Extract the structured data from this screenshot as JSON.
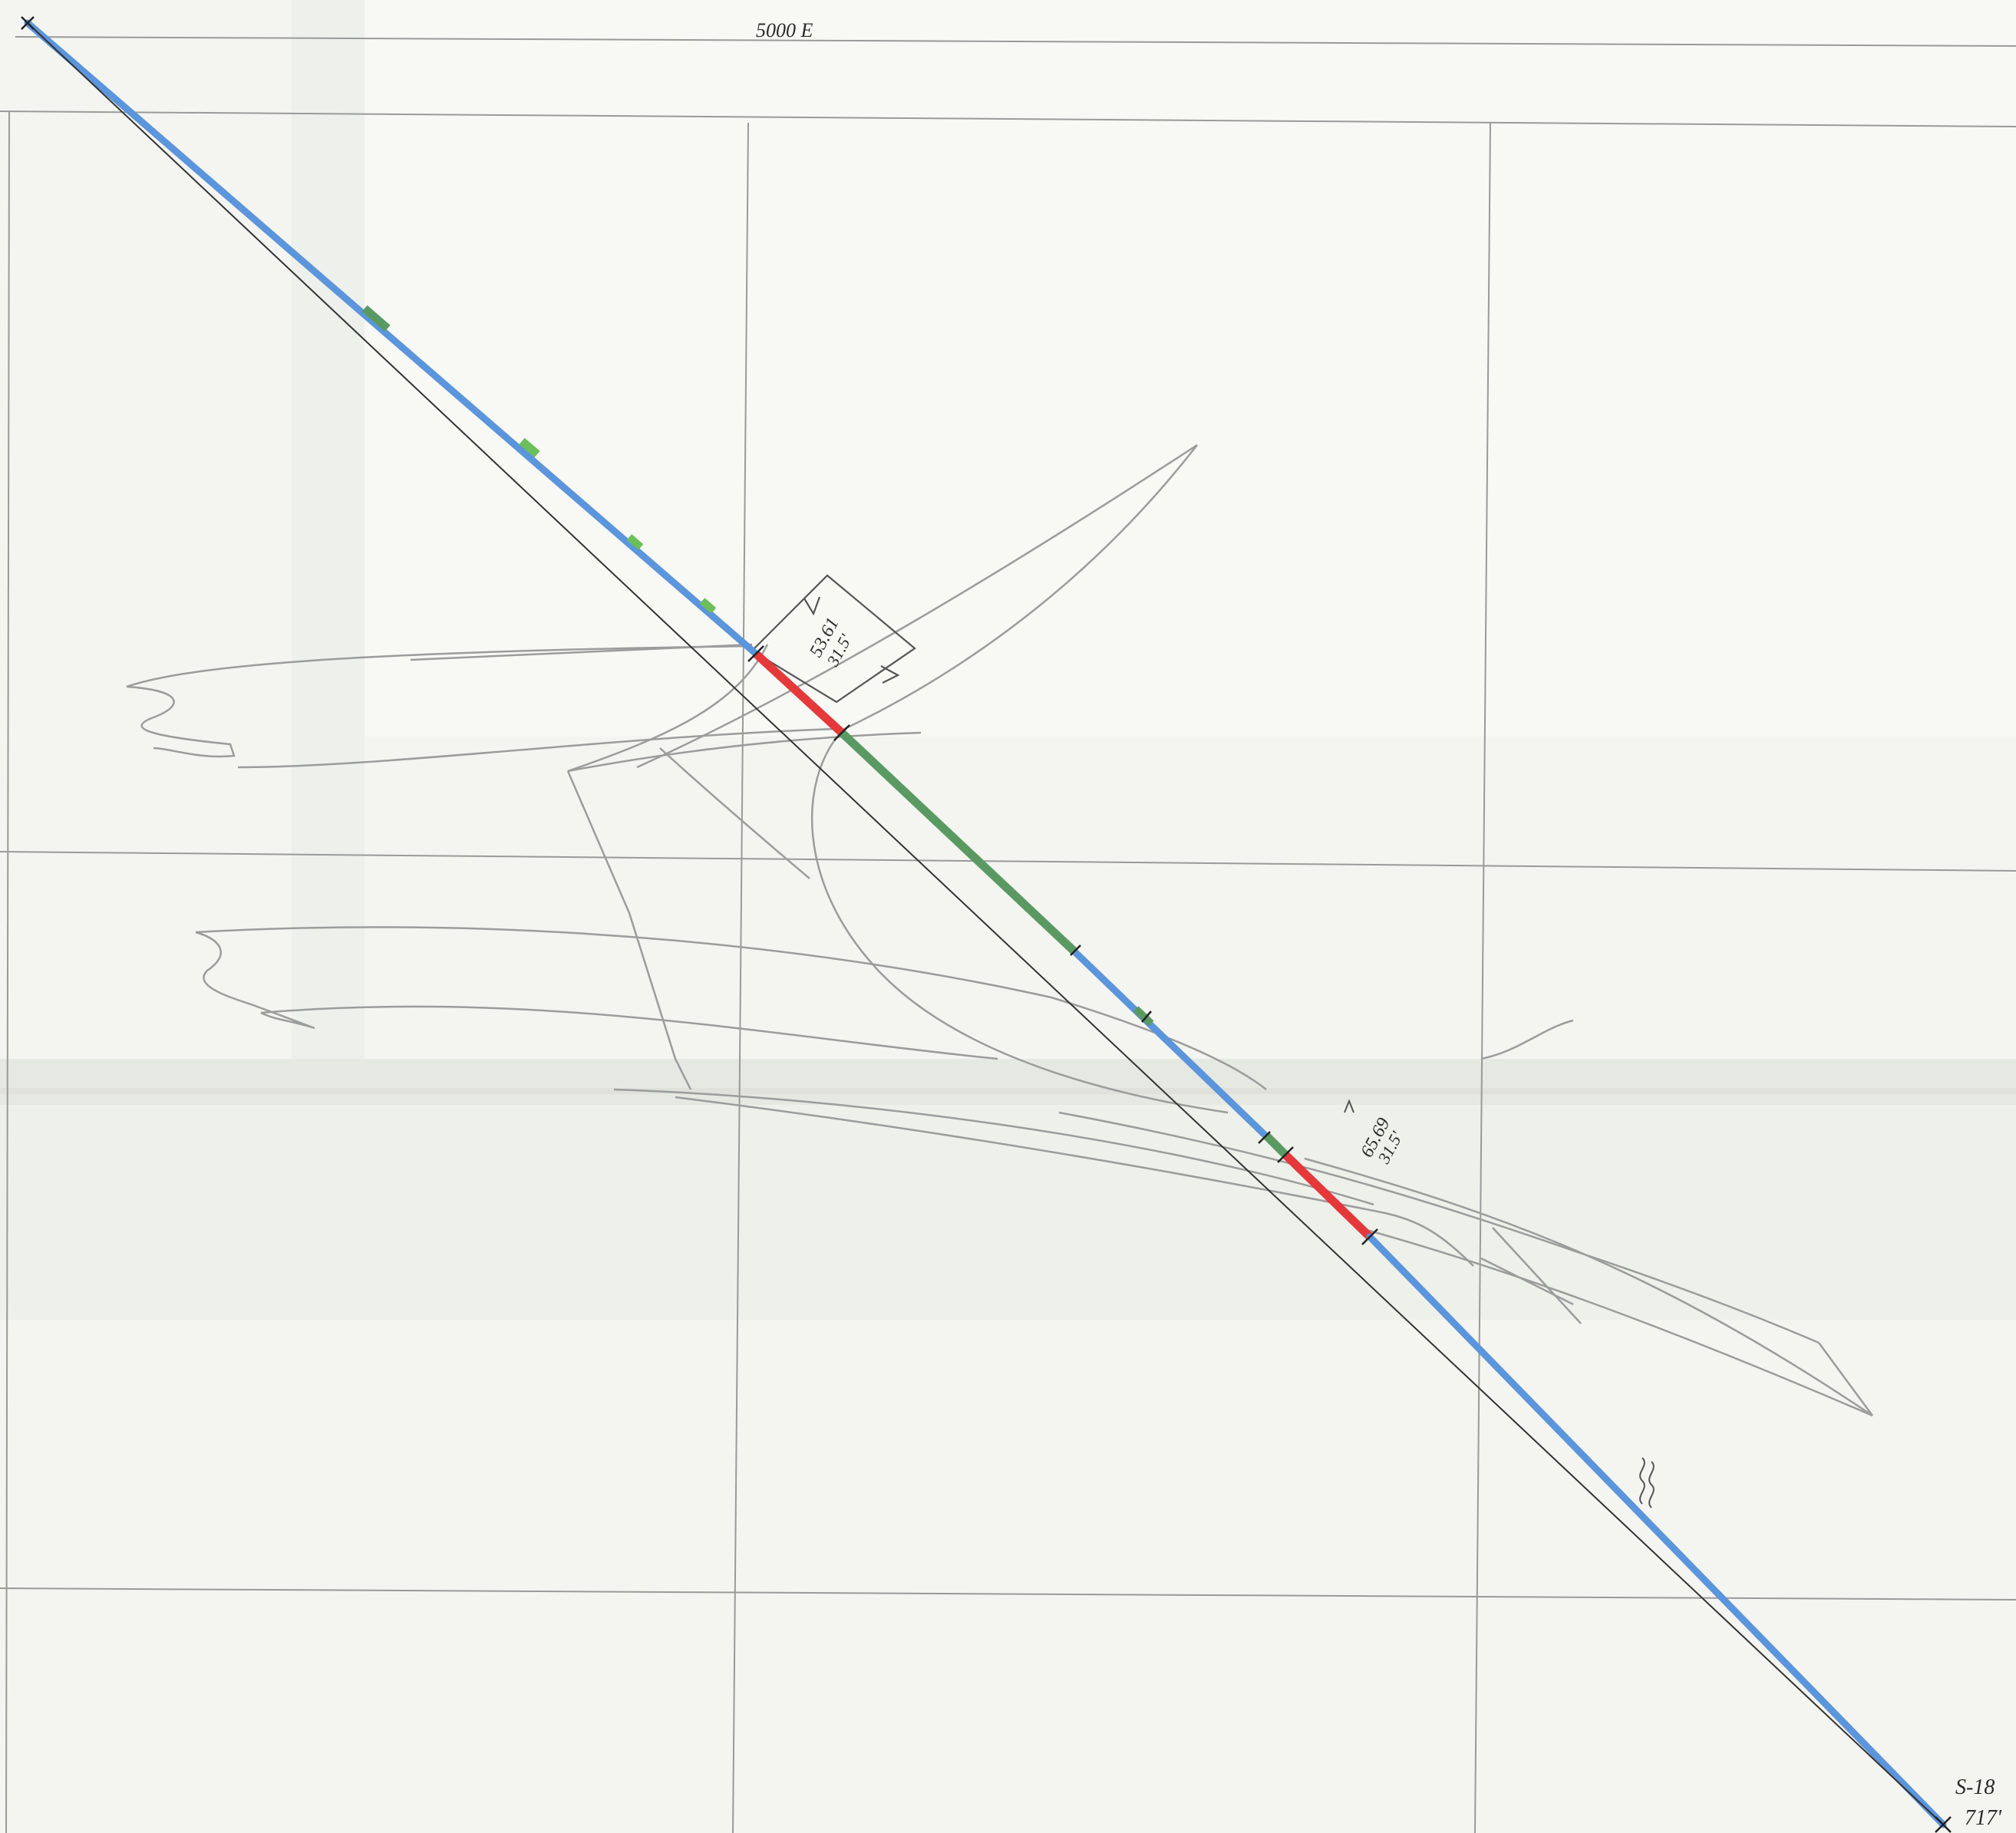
{
  "header": {
    "grid_label": "5000 E"
  },
  "drillhole": {
    "label": "S-18",
    "depth_label": "717'"
  },
  "intercepts": [
    {
      "id": "upper",
      "grade": "53.61",
      "width": "31.5'"
    },
    {
      "id": "lower",
      "grade": "65.69",
      "width": "31.5'"
    }
  ],
  "colors": {
    "paper": "#f4f5f0",
    "grid": "#9a9a9a",
    "pencil": "#9c9c9c",
    "hole_line": "#333333",
    "blue_zone": "#5b95dc",
    "green_zone": "#5a9a62",
    "red_zone": "#e4383a"
  }
}
